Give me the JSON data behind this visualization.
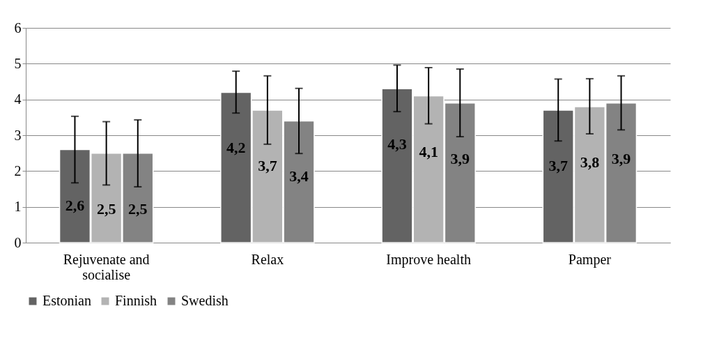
{
  "chart_data": {
    "type": "bar",
    "categories": [
      "Rejuvenate and socialise",
      "Relax",
      "Improve health",
      "Pamper"
    ],
    "series": [
      {
        "name": "Estonian",
        "color": "#636363",
        "values": [
          2.6,
          4.2,
          4.3,
          3.7
        ],
        "value_labels": [
          "2,6",
          "4,2",
          "4,3",
          "3,7"
        ],
        "errors": [
          [
            1.67,
            3.53
          ],
          [
            3.62,
            4.79
          ],
          [
            3.66,
            4.96
          ],
          [
            2.84,
            4.57
          ]
        ]
      },
      {
        "name": "Finnish",
        "color": "#b3b3b3",
        "values": [
          2.5,
          3.7,
          4.1,
          3.8
        ],
        "value_labels": [
          "2,5",
          "3,7",
          "4,1",
          "3,8"
        ],
        "errors": [
          [
            1.61,
            3.38
          ],
          [
            2.75,
            4.66
          ],
          [
            3.32,
            4.89
          ],
          [
            3.04,
            4.58
          ]
        ]
      },
      {
        "name": "Swedish",
        "color": "#838383",
        "values": [
          2.5,
          3.4,
          3.9,
          3.9
        ],
        "value_labels": [
          "2,5",
          "3,4",
          "3,9",
          "3,9"
        ],
        "errors": [
          [
            1.56,
            3.43
          ],
          [
            2.49,
            4.31
          ],
          [
            2.96,
            4.85
          ],
          [
            3.15,
            4.66
          ]
        ]
      }
    ],
    "ylim": [
      0,
      6
    ],
    "yticks": [
      0,
      1,
      2,
      3,
      4,
      5,
      6
    ],
    "grid": "y",
    "legend": "bottom"
  }
}
